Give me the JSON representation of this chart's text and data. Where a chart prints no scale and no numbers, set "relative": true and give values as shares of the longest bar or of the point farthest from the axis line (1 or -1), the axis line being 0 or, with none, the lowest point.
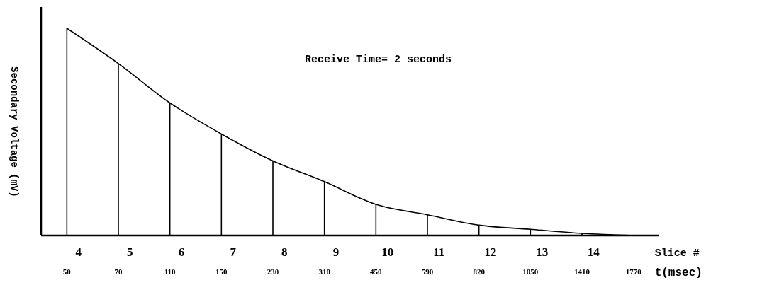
{
  "chart_data": {
    "type": "line",
    "relative": true,
    "title": "Receive Time= 2 seconds",
    "ylabel": "Secondary Voltage (mV)",
    "xlabel": "t(msec)",
    "categories": [
      "50",
      "70",
      "110",
      "150",
      "230",
      "310",
      "450",
      "590",
      "820",
      "1050",
      "1410",
      "1770"
    ],
    "series": [
      {
        "color": "#000000",
        "values": [
          1,
          0.83,
          0.64,
          0.49,
          0.36,
          0.26,
          0.15,
          0.1,
          0.05,
          0.03,
          0.01,
          0
        ]
      },
      {
        "type": "bar",
        "color": "#000000",
        "values": [
          1,
          0.83,
          0.64,
          0.49,
          0.36,
          0.26,
          0.15,
          0.1,
          0.05,
          0.03,
          0.01,
          null
        ]
      }
    ],
    "annotations": [
      "Slice #",
      "4",
      "5",
      "6",
      "7",
      "8",
      "9",
      "10",
      "11",
      "12",
      "13",
      "14"
    ],
    "grid": false,
    "marker": "none",
    "line_style": "solid"
  }
}
